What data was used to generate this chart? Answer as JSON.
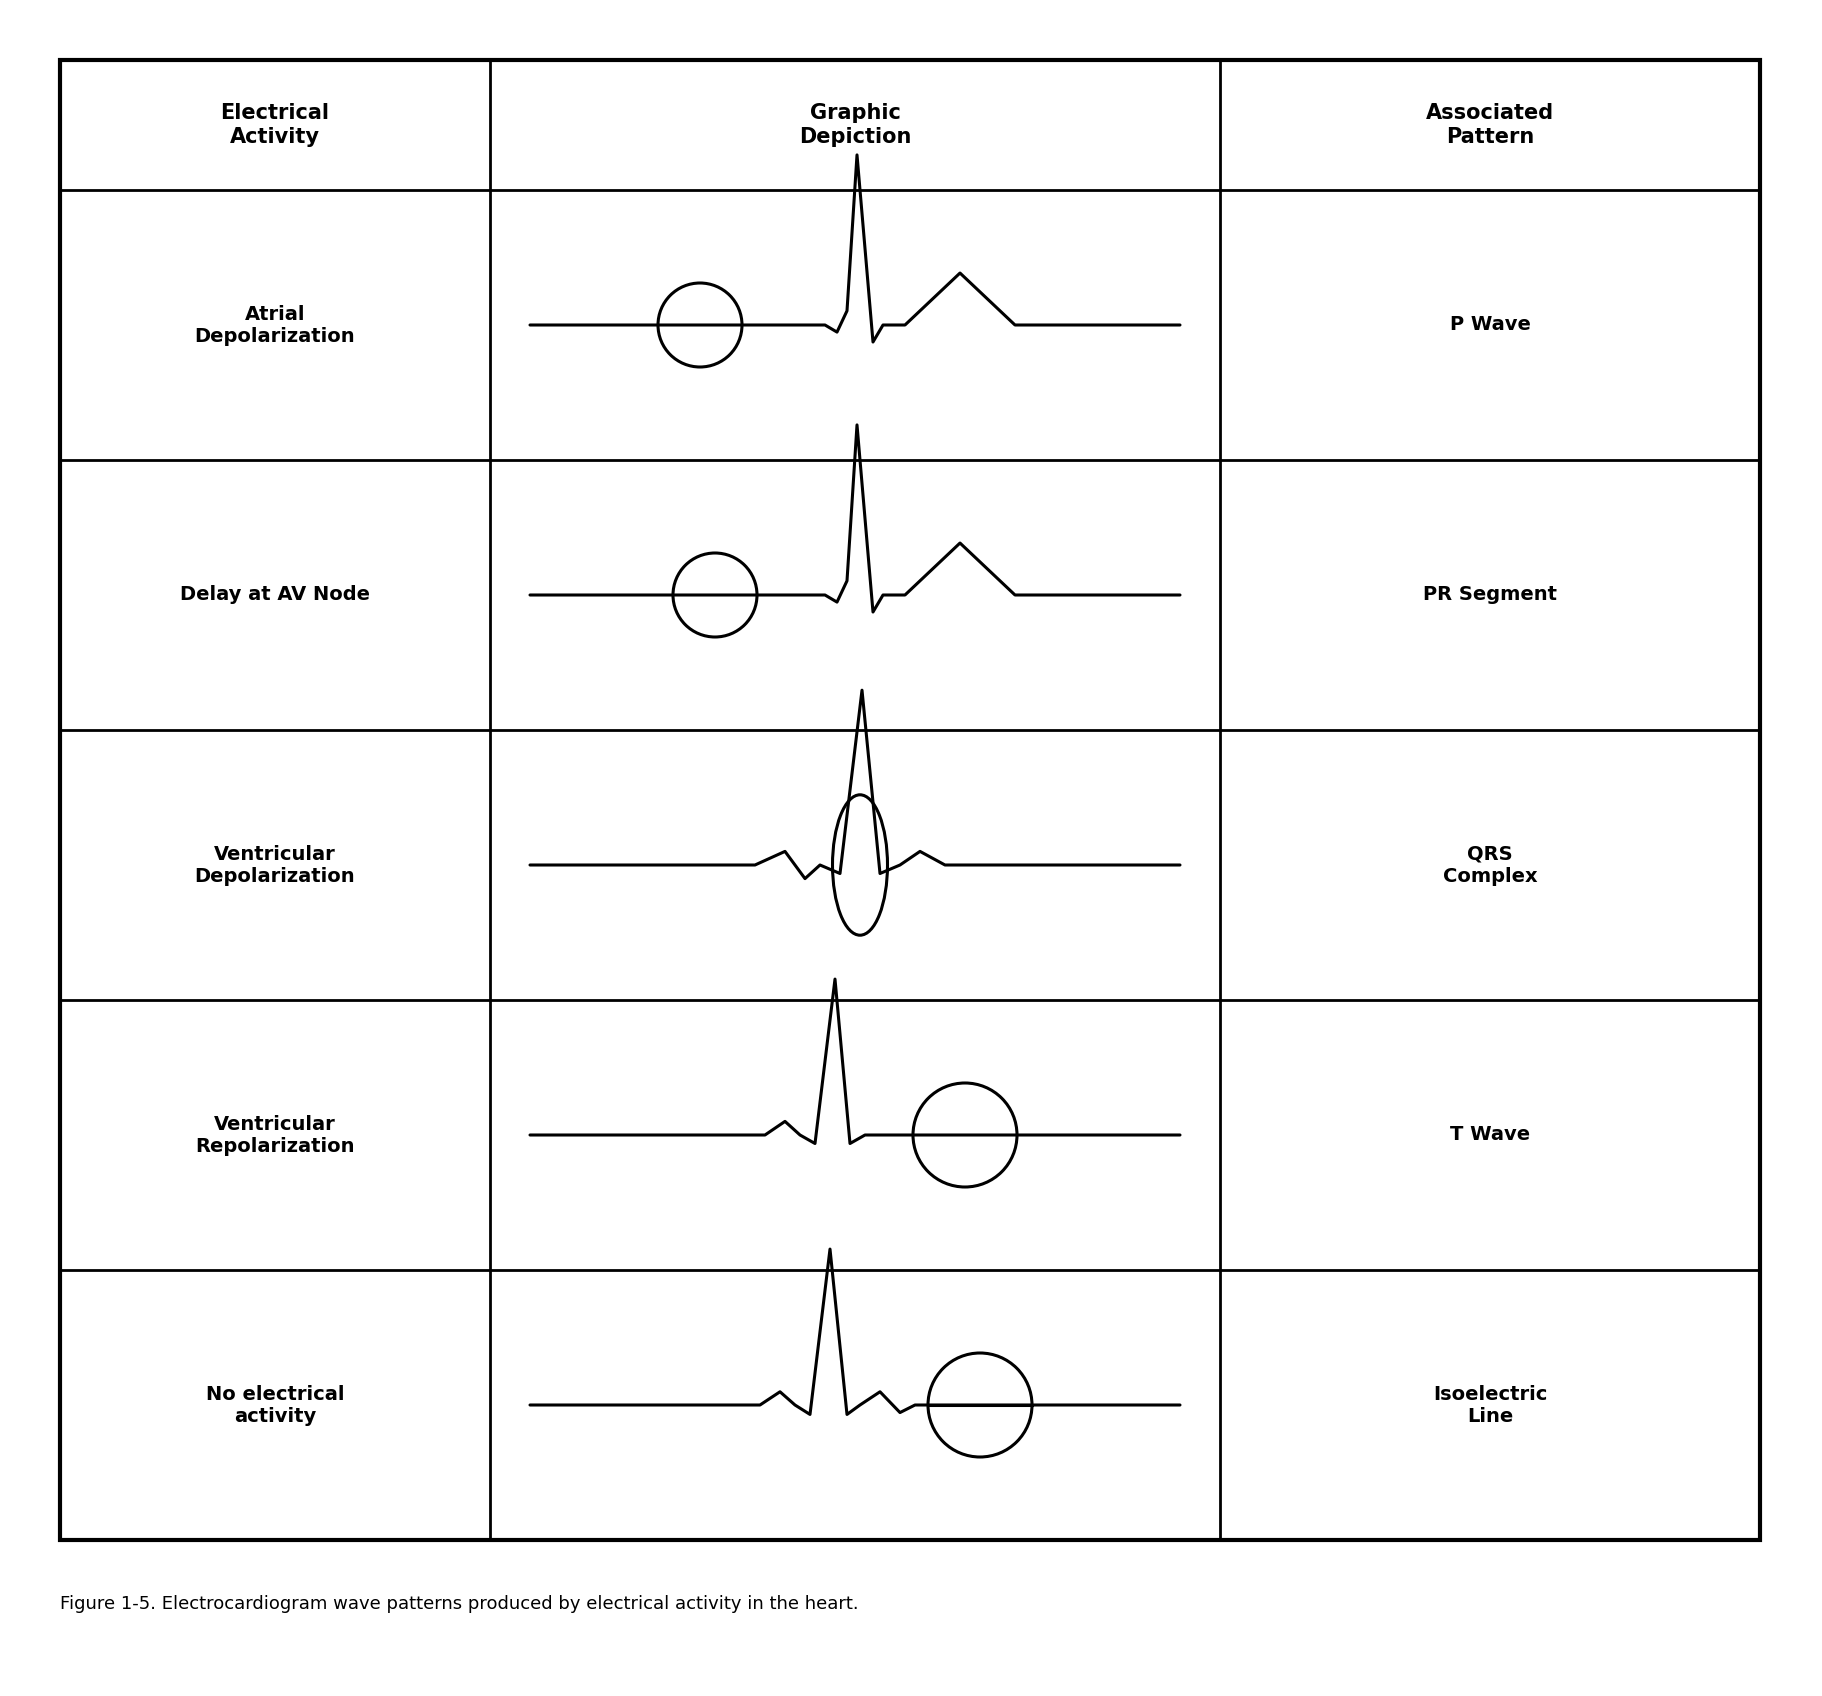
{
  "title": "",
  "caption": "Figure 1-5. Electrocardiogram wave patterns produced by electrical activity in the heart.",
  "col_headers": [
    "Electrical\nActivity",
    "Graphic\nDepiction",
    "Associated\nPattern"
  ],
  "rows": [
    {
      "activity": "Atrial\nDepolarization",
      "pattern": "P Wave",
      "circle_type": "small_left",
      "ecg_type": "p_wave_qrs_t"
    },
    {
      "activity": "Delay at AV Node",
      "pattern": "PR Segment",
      "circle_type": "small_left_oval",
      "ecg_type": "p_wave_qrs_t"
    },
    {
      "activity": "Ventricular\nDepolarization",
      "pattern": "QRS\nComplex",
      "circle_type": "large_oval_center",
      "ecg_type": "qrs_only"
    },
    {
      "activity": "Ventricular\nRepolarization",
      "pattern": "T Wave",
      "circle_type": "medium_right",
      "ecg_type": "qrs_t_wave"
    },
    {
      "activity": "No electrical\nactivity",
      "pattern": "Isoelectric\nLine",
      "circle_type": "medium_right_line",
      "ecg_type": "qrs_isoelectric"
    }
  ],
  "background_color": "#ffffff",
  "line_color": "#000000",
  "text_color": "#000000",
  "font_size_header": 15,
  "font_size_cell": 14,
  "font_size_caption": 13
}
